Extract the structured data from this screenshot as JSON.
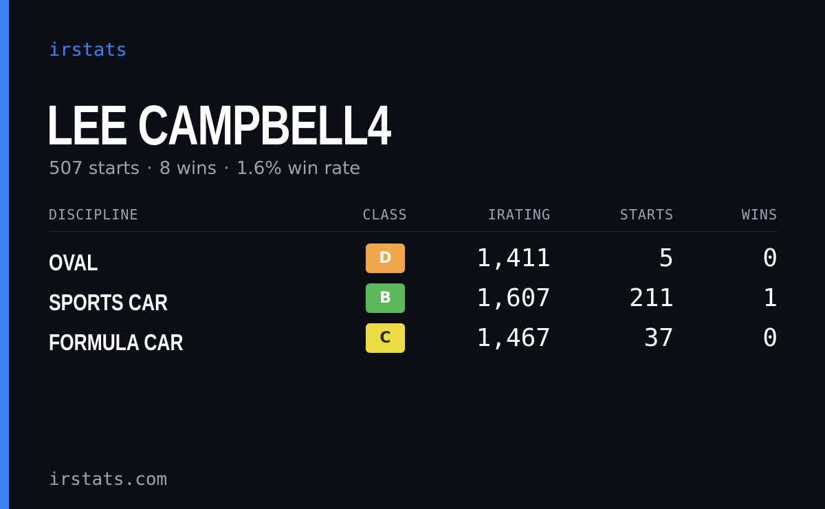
{
  "brand": "irstats",
  "driver": {
    "name": "LEE CAMPBELL4"
  },
  "summary": {
    "starts": "507 starts",
    "wins": "8 wins",
    "win_rate": "1.6% win rate",
    "separator": "·"
  },
  "table": {
    "headers": {
      "discipline": "DISCIPLINE",
      "class": "CLASS",
      "irating": "IRATING",
      "starts": "STARTS",
      "wins": "WINS"
    },
    "rows": [
      {
        "discipline": "OVAL",
        "class": "D",
        "class_color": "#f0a64a",
        "class_text_color": "#ffffff",
        "irating": "1,411",
        "starts": "5",
        "wins": "0"
      },
      {
        "discipline": "SPORTS CAR",
        "class": "B",
        "class_color": "#5cb85c",
        "class_text_color": "#ffffff",
        "irating": "1,607",
        "starts": "211",
        "wins": "1"
      },
      {
        "discipline": "FORMULA CAR",
        "class": "C",
        "class_color": "#eedc44",
        "class_text_color": "#2a2a2a",
        "irating": "1,467",
        "starts": "37",
        "wins": "0"
      }
    ]
  },
  "footer": {
    "domain": "irstats.com"
  },
  "colors": {
    "background": "#0b0e14",
    "accent": "#3b82f6",
    "muted_text": "#9aa3b2",
    "primary_text": "#ffffff"
  }
}
